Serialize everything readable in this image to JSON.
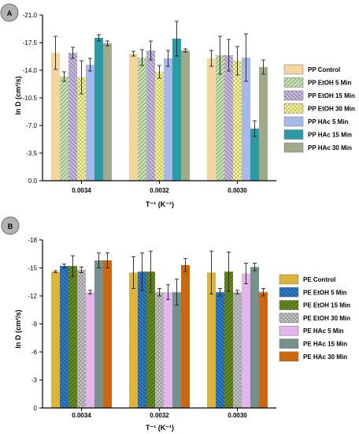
{
  "colors": {
    "badge_fill": "#b3b3b3",
    "badge_stroke": "#6e6e6e",
    "axis": "#000000"
  },
  "chart_data": [
    {
      "type": "bar",
      "panel_label": "A",
      "xlabel": "T⁻¹ (K⁻¹)",
      "ylabel": "ln D (cm²/s)",
      "categories": [
        "0.0034",
        "0.0032",
        "0.0030"
      ],
      "ylim": [
        0.0,
        -21.0
      ],
      "yticks": [
        "0.0",
        "-3.5",
        "-7.0",
        "-10.5",
        "-14.0",
        "-17.5",
        "-21.0"
      ],
      "legend_position": "right",
      "grid": false,
      "series": [
        {
          "name": "PP Control",
          "color": "#f5d59e",
          "pattern": "solid",
          "values": [
            -16.2,
            -16.1,
            -15.5
          ],
          "errors": [
            2.1,
            0.3,
            1.0
          ]
        },
        {
          "name": "PP EtOH 5 Min",
          "color": "#c7e5b3",
          "pattern": "hatch-forward",
          "values": [
            -13.2,
            -15.6,
            -15.9
          ],
          "errors": [
            0.6,
            1.0,
            2.4
          ]
        },
        {
          "name": "PP EtOH 15 Min",
          "color": "#c8b9e0",
          "pattern": "hatch-back",
          "values": [
            -16.2,
            -16.5,
            -15.9
          ],
          "errors": [
            0.7,
            1.2,
            2.0
          ]
        },
        {
          "name": "PP EtOH 30 Min",
          "color": "#ffff99",
          "pattern": "crosshatch",
          "values": [
            -13.1,
            -13.8,
            -15.2
          ],
          "errors": [
            2.1,
            0.8,
            1.8
          ]
        },
        {
          "name": "PP HAc 5 Min",
          "color": "#a6b8ec",
          "pattern": "solid",
          "values": [
            -14.7,
            -15.5,
            -15.6
          ],
          "errors": [
            0.8,
            1.0,
            3.0
          ]
        },
        {
          "name": "PP HAc 15 Min",
          "color": "#2a9aa4",
          "pattern": "solid",
          "values": [
            -18.1,
            -18.0,
            -6.6
          ],
          "errors": [
            0.4,
            2.2,
            1.0
          ]
        },
        {
          "name": "PP HAc 30 Min",
          "color": "#9eaa8a",
          "pattern": "solid",
          "values": [
            -17.4,
            -16.5,
            -14.4
          ],
          "errors": [
            0.3,
            0.2,
            0.9
          ]
        }
      ]
    },
    {
      "type": "bar",
      "panel_label": "B",
      "xlabel": "T⁻¹ (K⁻¹)",
      "ylabel": "ln D (cm²/s)",
      "categories": [
        "0.0034",
        "0.0032",
        "0.0030"
      ],
      "ylim": [
        0,
        -18
      ],
      "yticks": [
        "0",
        "-3",
        "-6",
        "-9",
        "-12",
        "-15",
        "-18"
      ],
      "legend_position": "right",
      "grid": false,
      "series": [
        {
          "name": "PE Control",
          "color": "#dcb33c",
          "pattern": "solid",
          "values": [
            -14.6,
            -14.5,
            -14.5
          ],
          "errors": [
            0.1,
            1.7,
            2.3
          ]
        },
        {
          "name": "PE EtOH 5 Min",
          "color": "#2e79c4",
          "pattern": "hatch-back",
          "values": [
            -15.2,
            -14.6,
            -12.4
          ],
          "errors": [
            0.2,
            2.0,
            0.4
          ]
        },
        {
          "name": "PE EtOH 15 Min",
          "color": "#668a1e",
          "pattern": "hatch-forward",
          "values": [
            -15.2,
            -14.6,
            -14.6
          ],
          "errors": [
            1.1,
            2.2,
            2.1
          ]
        },
        {
          "name": "PE EtOH 30 Min",
          "color": "#c8c8c8",
          "pattern": "crosshatch",
          "values": [
            -14.8,
            -12.4,
            -12.4
          ],
          "errors": [
            0.3,
            0.4,
            0.2
          ]
        },
        {
          "name": "PE HAc 5 Min",
          "color": "#e4b4ec",
          "pattern": "solid",
          "values": [
            -12.4,
            -12.4,
            -14.4
          ],
          "errors": [
            0.2,
            0.8,
            1.1
          ]
        },
        {
          "name": "PE HAc 15 Min",
          "color": "#75918d",
          "pattern": "solid",
          "values": [
            -15.8,
            -12.4,
            -15.1
          ],
          "errors": [
            0.8,
            1.4,
            0.4
          ]
        },
        {
          "name": "PE HAc 30 Min",
          "color": "#cc6611",
          "pattern": "solid",
          "values": [
            -15.8,
            -15.3,
            -12.4
          ],
          "errors": [
            0.8,
            0.7,
            0.4
          ]
        }
      ]
    }
  ]
}
